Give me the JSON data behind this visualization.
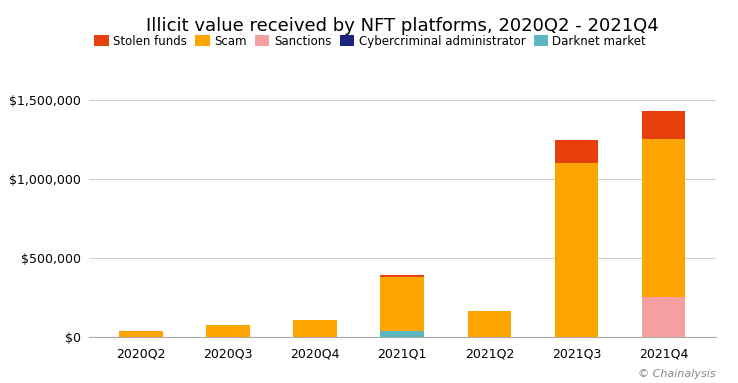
{
  "title": "Illicit value received by NFT platforms, 2020Q2 - 2021Q4",
  "categories": [
    "2020Q2",
    "2020Q3",
    "2020Q4",
    "2021Q1",
    "2021Q2",
    "2021Q3",
    "2021Q4"
  ],
  "series_order": [
    "Darknet market",
    "Cybercriminal administrator",
    "Sanctions",
    "Scam",
    "Stolen funds"
  ],
  "series": {
    "Stolen funds": [
      0,
      0,
      0,
      15000,
      0,
      150000,
      175000
    ],
    "Scam": [
      40000,
      75000,
      110000,
      340000,
      165000,
      1100000,
      1000000
    ],
    "Sanctions": [
      0,
      0,
      0,
      0,
      0,
      0,
      255000
    ],
    "Cybercriminal administrator": [
      0,
      0,
      0,
      0,
      0,
      0,
      0
    ],
    "Darknet market": [
      0,
      0,
      0,
      40000,
      0,
      0,
      0
    ]
  },
  "colors": {
    "Stolen funds": "#E8400C",
    "Scam": "#FFA500",
    "Sanctions": "#F4A0A0",
    "Cybercriminal administrator": "#1A237E",
    "Darknet market": "#5BB8C1"
  },
  "legend_order": [
    "Stolen funds",
    "Scam",
    "Sanctions",
    "Cybercriminal administrator",
    "Darknet market"
  ],
  "ylim": [
    0,
    1600000
  ],
  "yticks": [
    0,
    500000,
    1000000,
    1500000
  ],
  "background_color": "#ffffff",
  "grid_color": "#d0d0d0",
  "credit": "© Chainalysis",
  "bar_width": 0.5,
  "title_fontsize": 13,
  "tick_fontsize": 9,
  "legend_fontsize": 8.5
}
